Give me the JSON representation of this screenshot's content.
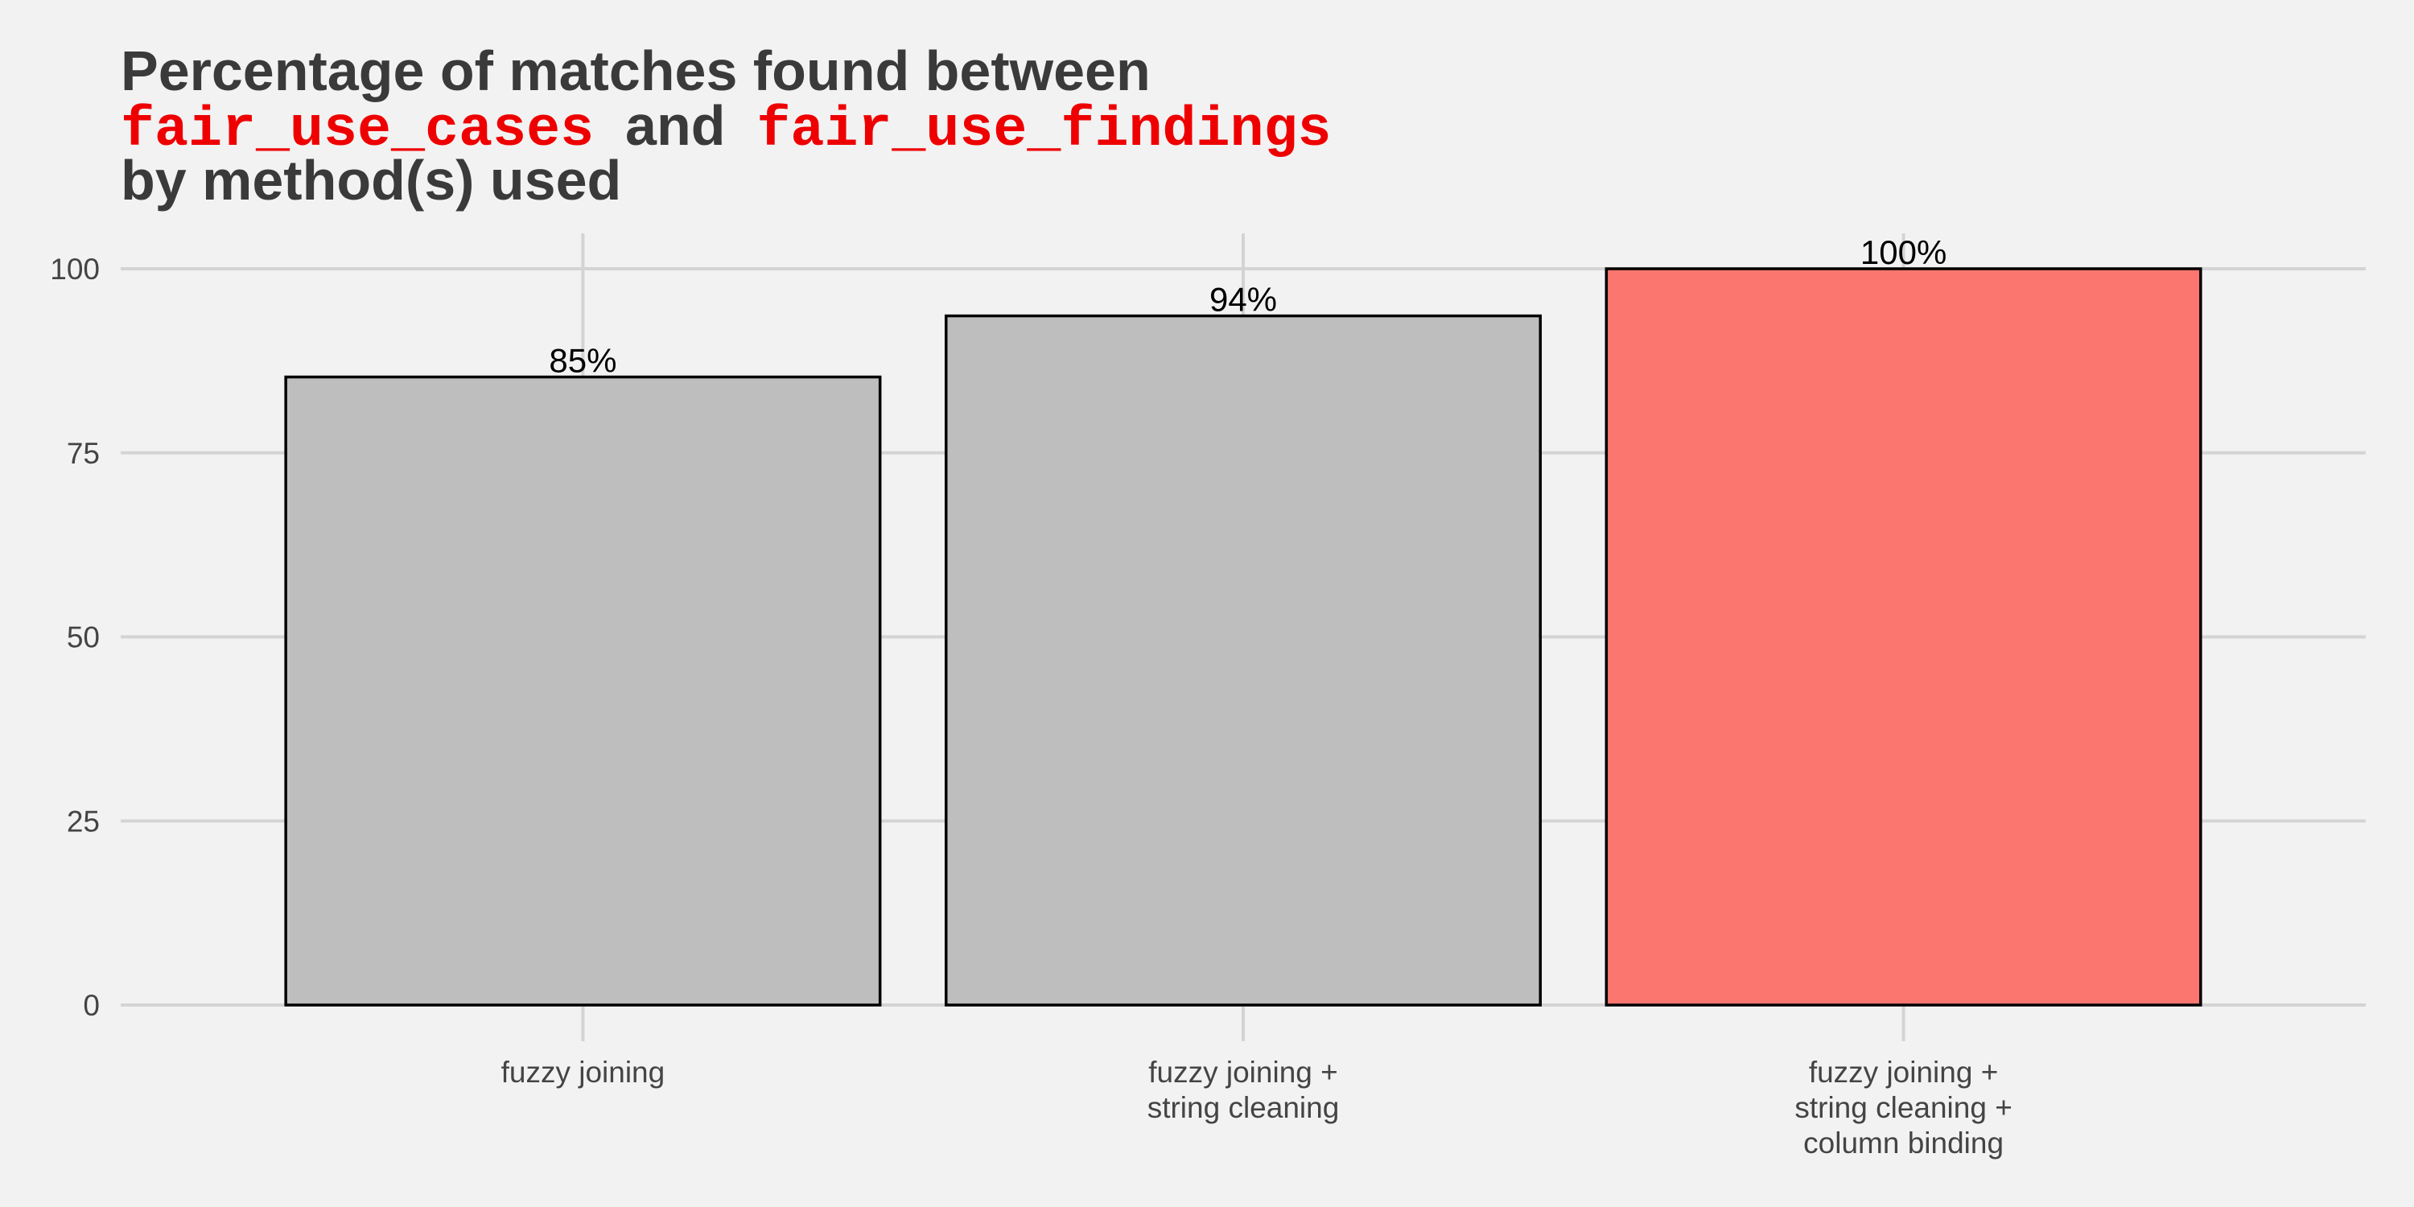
{
  "chart_data": {
    "type": "bar",
    "title": {
      "line1": "Percentage of matches found between",
      "line2_code1": "fair_use_cases",
      "line2_mid": " and ",
      "line2_code2": "fair_use_findings",
      "line3": "by method(s) used"
    },
    "categories": [
      [
        "fuzzy joining"
      ],
      [
        "fuzzy joining +",
        "string cleaning"
      ],
      [
        "fuzzy joining +",
        "string cleaning +",
        "column binding"
      ]
    ],
    "values": [
      85.3,
      93.6,
      100
    ],
    "data_labels": [
      "85%",
      "94%",
      "100%"
    ],
    "highlight_index": 2,
    "ylim": [
      0,
      100
    ],
    "yticks": [
      0,
      25,
      50,
      75,
      100
    ],
    "grid": true,
    "xlabel": "",
    "ylabel": "",
    "colors": {
      "bar": "#bebebe",
      "highlight": "#fa766e",
      "bar_stroke": "#000000",
      "grid": "#d4d4d4",
      "background": "#f2f2f2",
      "title": "#3a3a3a",
      "code": "#ee0000"
    }
  }
}
